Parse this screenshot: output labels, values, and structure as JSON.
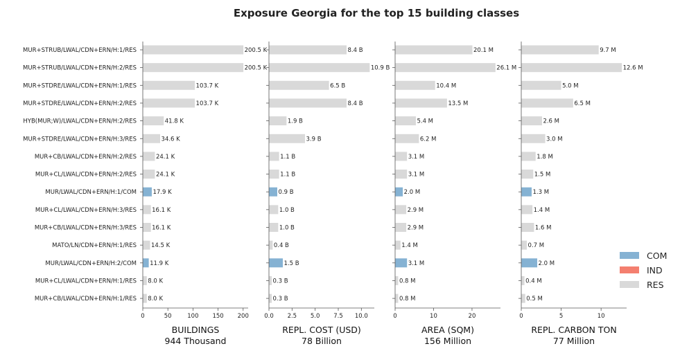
{
  "chart_data": {
    "type": "bar",
    "orientation": "horizontal",
    "title": "Exposure Georgia for the top 15 building classes",
    "categories": [
      "MUR+STRUB/LWAL/CDN+ERN/H:1/RES",
      "MUR+STRUB/LWAL/CDN+ERN/H:2/RES",
      "MUR+STDRE/LWAL/CDN+ERN/H:1/RES",
      "MUR+STDRE/LWAL/CDN+ERN/H:2/RES",
      "HYB(MUR;W)/LWAL/CDN+ERN/H:2/RES",
      "MUR+STDRE/LWAL/CDN+ERN/H:3/RES",
      "MUR+CB/LWAL/CDN+ERN/H:2/RES",
      "MUR+CL/LWAL/CDN+ERN/H:2/RES",
      "MUR/LWAL/CDN+ERN/H:1/COM",
      "MUR+CL/LWAL/CDN+ERN/H:3/RES",
      "MUR+CB/LWAL/CDN+ERN/H:3/RES",
      "MATO/LN/CDN+ERN/H:1/RES",
      "MUR/LWAL/CDN+ERN/H:2/COM",
      "MUR+CL/LWAL/CDN+ERN/H:1/RES",
      "MUR+CB/LWAL/CDN+ERN/H:1/RES"
    ],
    "occupancy": [
      "RES",
      "RES",
      "RES",
      "RES",
      "RES",
      "RES",
      "RES",
      "RES",
      "COM",
      "RES",
      "RES",
      "RES",
      "COM",
      "RES",
      "RES"
    ],
    "colors": {
      "COM": "#85b2d3",
      "IND": "#f47f6f",
      "RES": "#d9d9d9"
    },
    "legend": {
      "position": "right",
      "entries": [
        "COM",
        "IND",
        "RES"
      ]
    },
    "panels": [
      {
        "xlabel": "BUILDINGS",
        "total": "944 Thousand",
        "xlim": [
          0,
          210
        ],
        "ticks": [
          0,
          50,
          100,
          150,
          200
        ],
        "tick_labels": [
          "0",
          "50",
          "100",
          "150",
          "200"
        ],
        "values": [
          200.5,
          200.5,
          103.7,
          103.7,
          41.8,
          34.6,
          24.1,
          24.1,
          17.9,
          16.1,
          16.1,
          14.5,
          11.9,
          8.0,
          8.0
        ],
        "labels": [
          "200.5 K",
          "200.5 K",
          "103.7 K",
          "103.7 K",
          "41.8 K",
          "34.6 K",
          "24.1 K",
          "24.1 K",
          "17.9 K",
          "16.1 K",
          "16.1 K",
          "14.5 K",
          "11.9 K",
          "8.0 K",
          "8.0 K"
        ]
      },
      {
        "xlabel": "REPL. COST (USD)",
        "total": "78 Billion",
        "xlim": [
          0,
          11.4
        ],
        "ticks": [
          0,
          2.5,
          5,
          7.5,
          10
        ],
        "tick_labels": [
          "0.0",
          "2.5",
          "5.0",
          "7.5",
          "10.0"
        ],
        "values": [
          8.4,
          10.9,
          6.5,
          8.4,
          1.9,
          3.9,
          1.1,
          1.1,
          0.9,
          1.0,
          1.0,
          0.4,
          1.5,
          0.3,
          0.3
        ],
        "labels": [
          "8.4 B",
          "10.9 B",
          "6.5 B",
          "8.4 B",
          "1.9 B",
          "3.9 B",
          "1.1 B",
          "1.1 B",
          "0.9 B",
          "1.0 B",
          "1.0 B",
          "0.4 B",
          "1.5 B",
          "0.3 B",
          "0.3 B"
        ]
      },
      {
        "xlabel": "AREA (SQM)",
        "total": "156 Million",
        "xlim": [
          0,
          27.4
        ],
        "ticks": [
          0,
          10,
          20
        ],
        "tick_labels": [
          "0",
          "10",
          "20"
        ],
        "values": [
          20.1,
          26.1,
          10.4,
          13.5,
          5.4,
          6.2,
          3.1,
          3.1,
          2.0,
          2.9,
          2.9,
          1.4,
          3.1,
          0.8,
          0.8
        ],
        "labels": [
          "20.1 M",
          "26.1 M",
          "10.4 M",
          "13.5 M",
          "5.4 M",
          "6.2 M",
          "3.1 M",
          "3.1 M",
          "2.0 M",
          "2.9 M",
          "2.9 M",
          "1.4 M",
          "3.1 M",
          "0.8 M",
          "0.8 M"
        ]
      },
      {
        "xlabel": "REPL. CARBON TON",
        "total": "77 Million",
        "xlim": [
          0,
          13.2
        ],
        "ticks": [
          0,
          5,
          10
        ],
        "tick_labels": [
          "0",
          "5",
          "10"
        ],
        "values": [
          9.7,
          12.6,
          5.0,
          6.5,
          2.6,
          3.0,
          1.8,
          1.5,
          1.3,
          1.4,
          1.6,
          0.7,
          2.0,
          0.4,
          0.5
        ],
        "labels": [
          "9.7 M",
          "12.6 M",
          "5.0 M",
          "6.5 M",
          "2.6 M",
          "3.0 M",
          "1.8 M",
          "1.5 M",
          "1.3 M",
          "1.4 M",
          "1.6 M",
          "0.7 M",
          "2.0 M",
          "0.4 M",
          "0.5 M"
        ]
      }
    ]
  }
}
